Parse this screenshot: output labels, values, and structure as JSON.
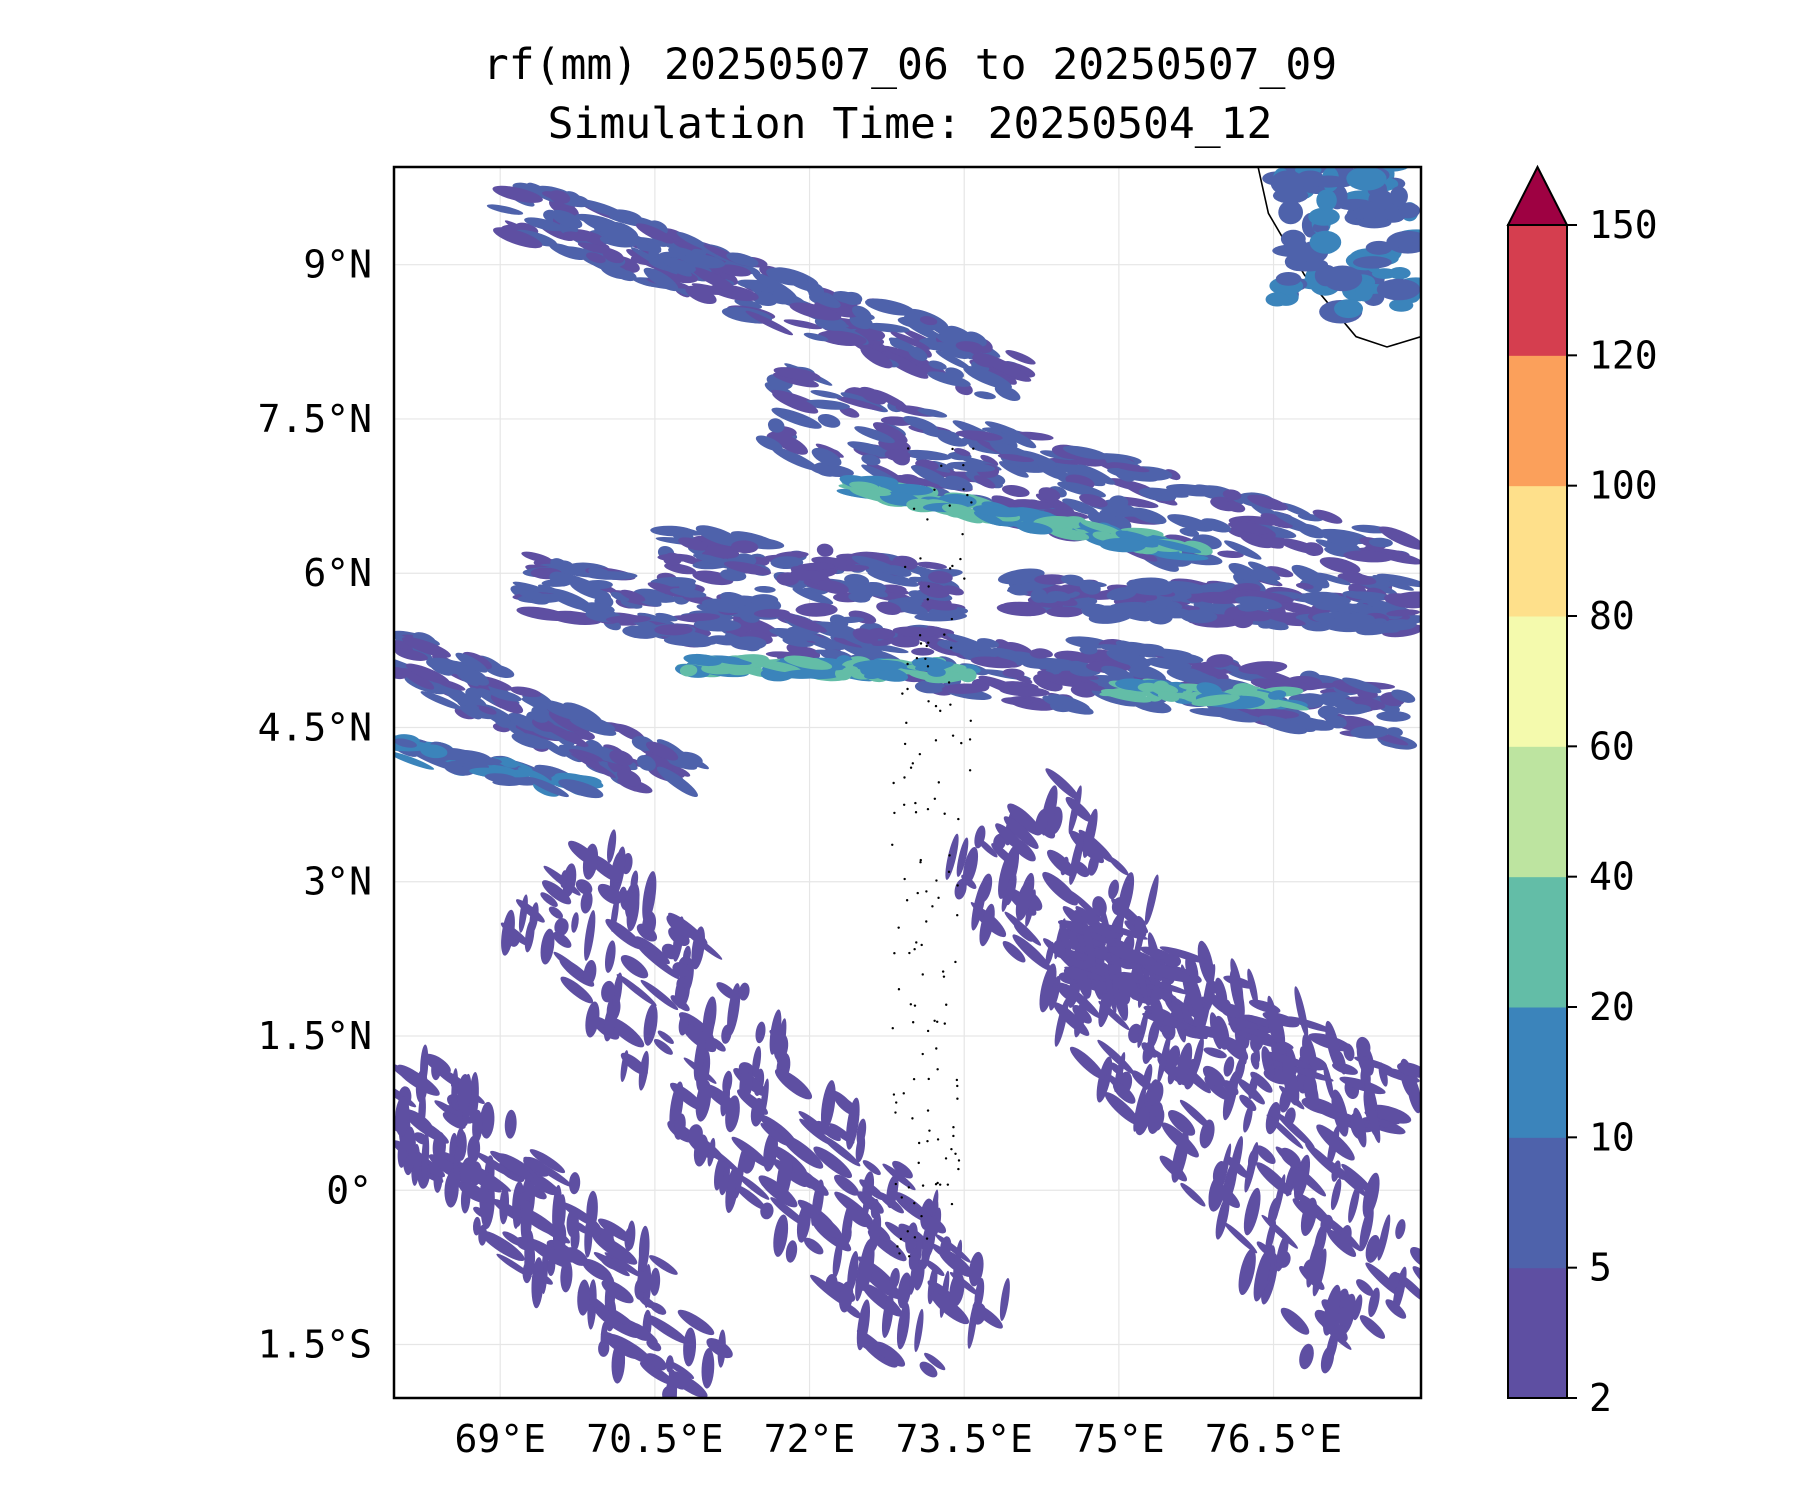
{
  "chart_data": {
    "type": "heatmap",
    "title_line1": "rf(mm) 20250507_06 to 20250507_09",
    "title_line2": "Simulation Time: 20250504_12",
    "variable": "rf(mm)",
    "extent": {
      "lon": [
        67.97,
        77.93
      ],
      "lat": [
        -2.02,
        9.95
      ]
    },
    "x_ticks": [
      {
        "value": 69.0,
        "label": "69°E"
      },
      {
        "value": 70.5,
        "label": "70.5°E"
      },
      {
        "value": 72.0,
        "label": "72°E"
      },
      {
        "value": 73.5,
        "label": "73.5°E"
      },
      {
        "value": 75.0,
        "label": "75°E"
      },
      {
        "value": 76.5,
        "label": "76.5°E"
      }
    ],
    "y_ticks": [
      {
        "value": 9.0,
        "label": "9°N"
      },
      {
        "value": 7.5,
        "label": "7.5°N"
      },
      {
        "value": 6.0,
        "label": "6°N"
      },
      {
        "value": 4.5,
        "label": "4.5°N"
      },
      {
        "value": 3.0,
        "label": "3°N"
      },
      {
        "value": 1.5,
        "label": "1.5°N"
      },
      {
        "value": 0.0,
        "label": "0°"
      },
      {
        "value": -1.5,
        "label": "1.5°S"
      }
    ],
    "grid": true,
    "colorbar": {
      "levels": [
        2,
        5,
        10,
        20,
        40,
        60,
        80,
        100,
        120,
        150
      ],
      "labels": [
        "2",
        "5",
        "10",
        "20",
        "40",
        "60",
        "80",
        "100",
        "120",
        "150"
      ],
      "colors": [
        "#5e4fa2",
        "#4e62ab",
        "#3b84bb",
        "#63bda7",
        "#bde4a0",
        "#f4faad",
        "#fee08b",
        "#fba05b",
        "#d53e4f"
      ],
      "extend_color": "#9e0142",
      "extend": "max",
      "placement": "right"
    },
    "rain_bands": [
      {
        "lon0": 69.0,
        "lat0": 9.6,
        "lon1": 74.0,
        "lat1": 7.9,
        "width": 0.55,
        "level": 1
      },
      {
        "lon0": 71.6,
        "lat0": 7.6,
        "lon1": 77.8,
        "lat1": 5.9,
        "width": 0.85,
        "level": 1
      },
      {
        "lon0": 72.4,
        "lat0": 6.85,
        "lon1": 75.8,
        "lat1": 6.2,
        "width": 0.16,
        "level": 3
      },
      {
        "lon0": 70.6,
        "lat0": 6.2,
        "lon1": 73.4,
        "lat1": 5.8,
        "width": 0.5,
        "level": 1
      },
      {
        "lon0": 69.3,
        "lat0": 5.9,
        "lon1": 74.6,
        "lat1": 4.9,
        "width": 0.55,
        "level": 1
      },
      {
        "lon0": 70.8,
        "lat0": 5.1,
        "lon1": 73.6,
        "lat1": 5.05,
        "width": 0.14,
        "level": 3
      },
      {
        "lon0": 68.0,
        "lat0": 5.2,
        "lon1": 70.8,
        "lat1": 4.0,
        "width": 0.55,
        "level": 1
      },
      {
        "lon0": 68.0,
        "lat0": 4.3,
        "lon1": 69.8,
        "lat1": 3.9,
        "width": 0.2,
        "level": 2
      },
      {
        "lon0": 74.6,
        "lat0": 5.1,
        "lon1": 77.8,
        "lat1": 4.6,
        "width": 0.55,
        "level": 1
      },
      {
        "lon0": 75.0,
        "lat0": 4.88,
        "lon1": 76.7,
        "lat1": 4.78,
        "width": 0.14,
        "level": 3
      },
      {
        "lon0": 74.0,
        "lat0": 5.8,
        "lon1": 77.8,
        "lat1": 5.6,
        "width": 0.35,
        "level": 1
      },
      {
        "lon0": 69.5,
        "lat0": 3.0,
        "lon1": 73.5,
        "lat1": -1.5,
        "width": 1.4,
        "level": 0
      },
      {
        "lon0": 73.8,
        "lat0": 3.6,
        "lon1": 77.5,
        "lat1": -1.3,
        "width": 1.5,
        "level": 0
      },
      {
        "lon0": 68.0,
        "lat0": 1.0,
        "lon1": 71.0,
        "lat1": -1.8,
        "width": 1.0,
        "level": 0
      },
      {
        "lon0": 74.5,
        "lat0": 2.5,
        "lon1": 77.8,
        "lat1": 0.8,
        "width": 0.8,
        "level": 0
      }
    ]
  },
  "map": {
    "coastline_color": "#000000",
    "land_note": "coast"
  }
}
